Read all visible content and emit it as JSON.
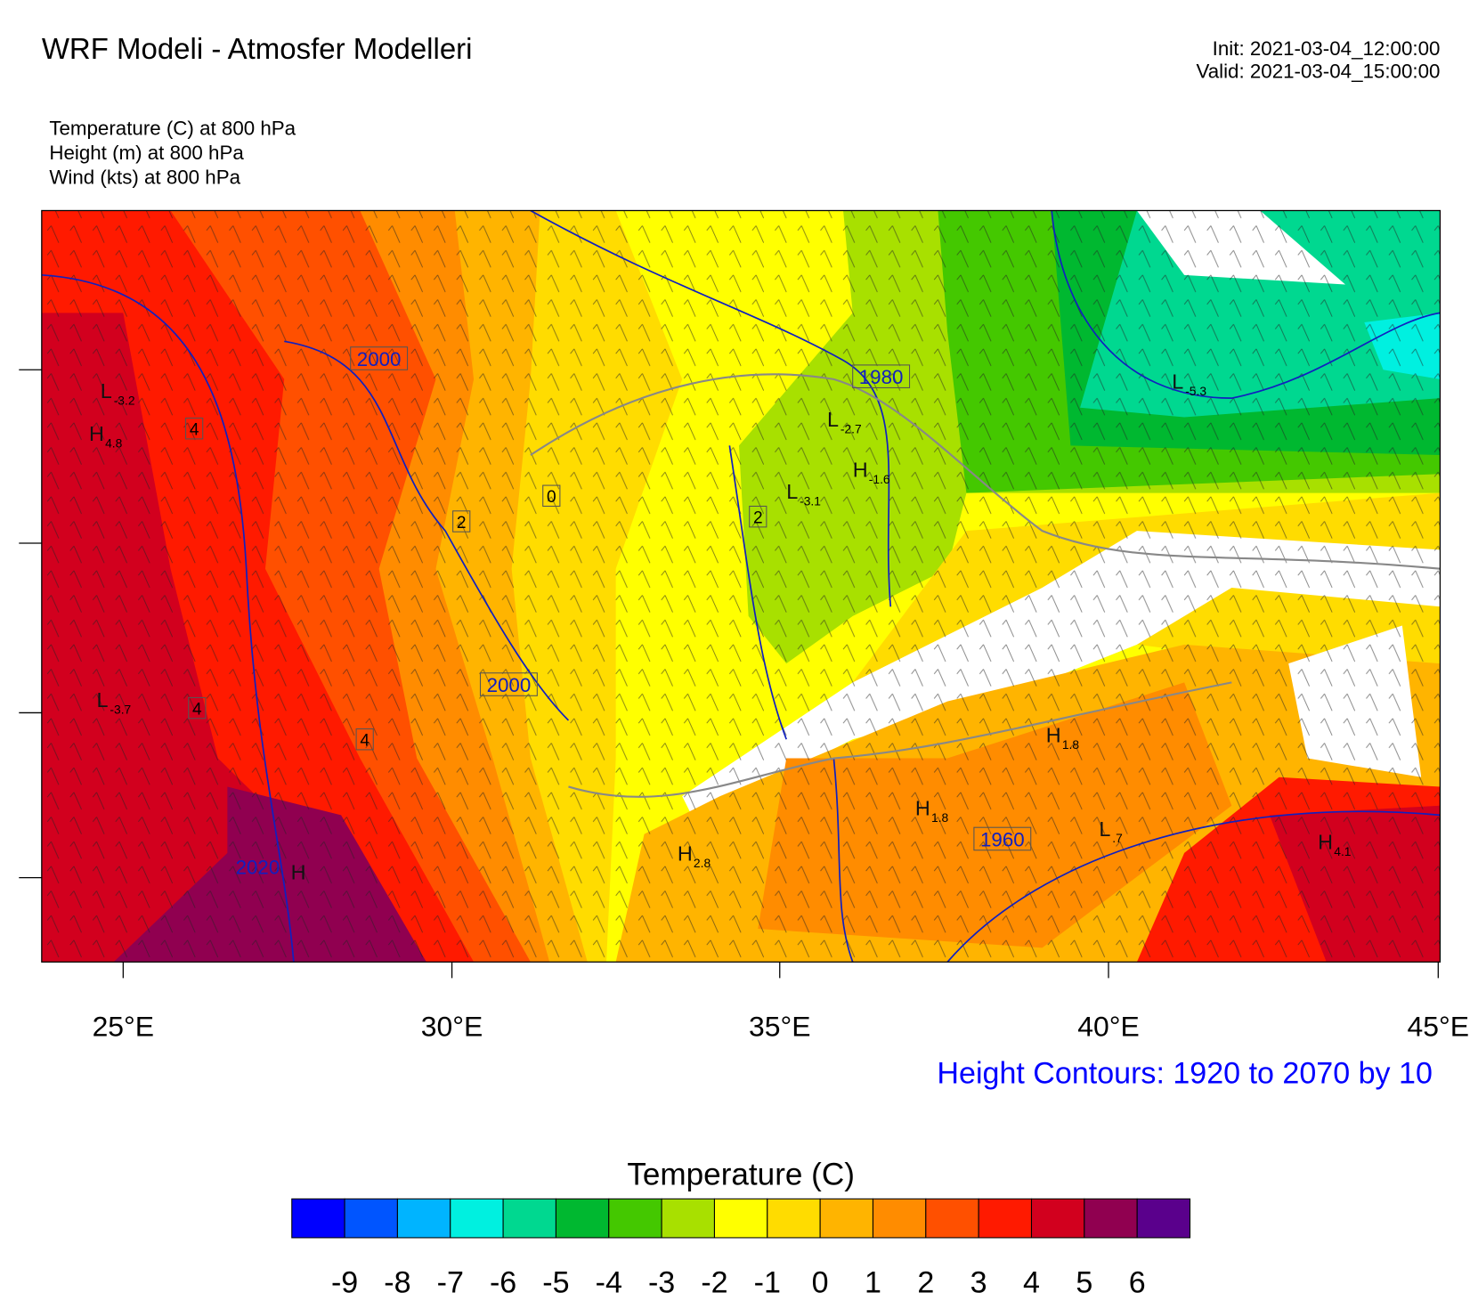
{
  "header": {
    "title": "WRF Modeli - Atmosfer Modelleri",
    "init": "Init: 2021-03-04_12:00:00",
    "valid": "Valid: 2021-03-04_15:00:00",
    "fields": [
      "Temperature   (C)     at   800 hPa",
      "Height   (m)     at   800 hPa",
      "Wind   (kts)     at   800 hPa"
    ]
  },
  "map": {
    "xticks": [
      "25°E",
      "30°E",
      "35°E",
      "40°E",
      "45°E"
    ],
    "height_labels": [
      "2000",
      "1980",
      "2000",
      "1960",
      "2020"
    ],
    "temp_labels": [
      "4",
      "2",
      "0",
      "2",
      "4",
      "4"
    ],
    "centers": [
      {
        "letter": "L",
        "value": "-3.2"
      },
      {
        "letter": "H",
        "value": "4.8"
      },
      {
        "letter": "L",
        "value": "-3.7"
      },
      {
        "letter": "L",
        "value": "-2.7"
      },
      {
        "letter": "H",
        "value": "-1.6"
      },
      {
        "letter": "L",
        "value": "-3.1"
      },
      {
        "letter": "L",
        "value": "-5.3"
      },
      {
        "letter": "H",
        "value": "1.8"
      },
      {
        "letter": "H",
        "value": "1.8"
      },
      {
        "letter": "L",
        "value": ".7"
      },
      {
        "letter": "H",
        "value": "4.1"
      },
      {
        "letter": "H",
        "value": "2.8"
      },
      {
        "letter": "H"
      }
    ],
    "contour_note": "Height Contours: 1920 to 2070 by 10"
  },
  "legend": {
    "title": "Temperature  (C)",
    "colors": [
      "#0000ff",
      "#0055ff",
      "#00b4ff",
      "#00f0e0",
      "#00d890",
      "#00b830",
      "#44c800",
      "#a8e000",
      "#ffff00",
      "#ffdc00",
      "#ffb400",
      "#ff8c00",
      "#ff5000",
      "#ff1a00",
      "#d2001e",
      "#900050",
      "#5a008c"
    ],
    "labels": [
      -9,
      -8,
      -7,
      -6,
      -5,
      -4,
      -3,
      -2,
      -1,
      0,
      1,
      2,
      3,
      4,
      5,
      6
    ]
  }
}
